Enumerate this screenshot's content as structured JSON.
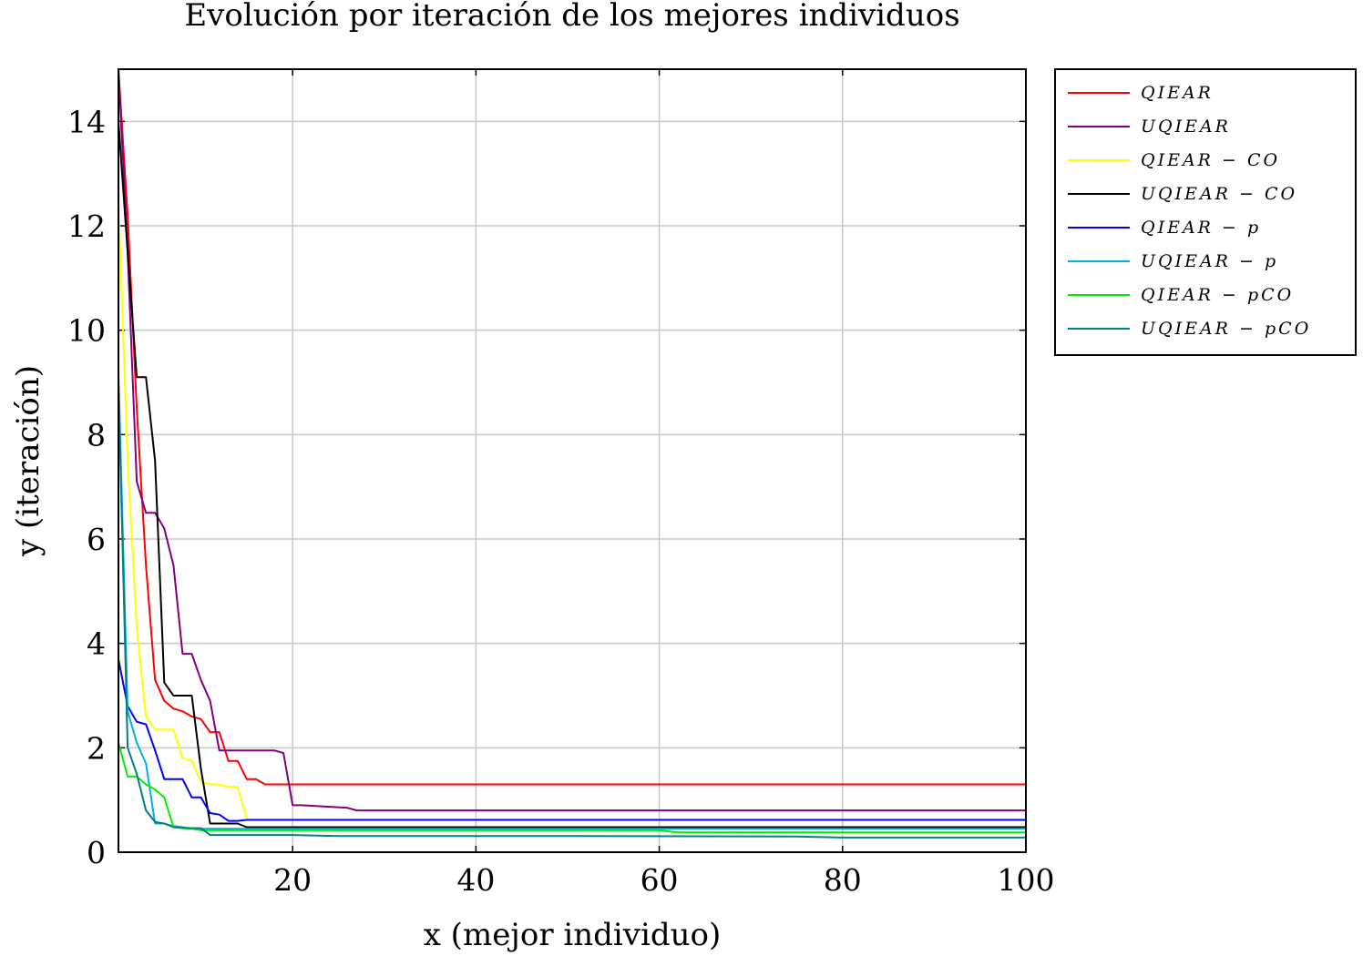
{
  "chart_data": {
    "type": "line",
    "title": "Evolución por iteración de los mejores individuos",
    "xlabel": "x (mejor individuo)",
    "ylabel": "y (iteración)",
    "xlim": [
      1,
      100
    ],
    "ylim": [
      0,
      15
    ],
    "xticks": [
      20,
      40,
      60,
      80,
      100
    ],
    "yticks": [
      0,
      2,
      4,
      6,
      8,
      10,
      12,
      14
    ],
    "grid": true,
    "legend_position": "outside-right-top",
    "series": [
      {
        "name": "QIEAR",
        "color": "#ff0000",
        "x": [
          1,
          2,
          3,
          4,
          5,
          6,
          7,
          8,
          9,
          10,
          11,
          12,
          13,
          14,
          15,
          16,
          17,
          100
        ],
        "y": [
          15,
          12.2,
          8.5,
          5.5,
          3.3,
          2.9,
          2.75,
          2.7,
          2.6,
          2.55,
          2.3,
          2.3,
          1.75,
          1.75,
          1.4,
          1.4,
          1.3,
          1.3
        ]
      },
      {
        "name": "UQIEAR",
        "color": "#800080",
        "x": [
          1,
          2,
          3,
          4,
          5,
          6,
          7,
          8,
          9,
          10,
          11,
          12,
          13,
          18,
          19,
          20,
          21,
          26,
          27,
          100
        ],
        "y": [
          15,
          11.5,
          7.1,
          6.5,
          6.5,
          6.2,
          5.5,
          3.8,
          3.8,
          3.3,
          2.9,
          1.95,
          1.95,
          1.95,
          1.9,
          0.9,
          0.9,
          0.85,
          0.8,
          0.8
        ]
      },
      {
        "name": "QIEAR − CO",
        "color": "#ffff00",
        "x": [
          1,
          2,
          3,
          4,
          5,
          6,
          7,
          8,
          9,
          10,
          11,
          12,
          13,
          14,
          15
        ],
        "y": [
          12.5,
          7.5,
          4.3,
          2.6,
          2.35,
          2.35,
          2.35,
          1.8,
          1.75,
          1.35,
          1.3,
          1.3,
          1.25,
          1.25,
          0.65
        ]
      },
      {
        "name": "UQIEAR − CO",
        "color": "#000000",
        "x": [
          1,
          2,
          3,
          4,
          5,
          6,
          7,
          8,
          9,
          10,
          11,
          12,
          13,
          14,
          15,
          16,
          100
        ],
        "y": [
          14,
          11.5,
          9.1,
          9.1,
          7.5,
          3.25,
          3.0,
          3.0,
          3.0,
          1.6,
          0.55,
          0.55,
          0.55,
          0.55,
          0.48,
          0.48,
          0.48
        ]
      },
      {
        "name": "QIEAR − p",
        "color": "#0000ff",
        "x": [
          1,
          2,
          3,
          4,
          5,
          6,
          7,
          8,
          9,
          10,
          11,
          12,
          13,
          14,
          15,
          100
        ],
        "y": [
          3.7,
          2.8,
          2.5,
          2.45,
          1.95,
          1.4,
          1.4,
          1.4,
          1.05,
          1.05,
          0.75,
          0.72,
          0.6,
          0.6,
          0.62,
          0.62
        ]
      },
      {
        "name": "UQIEAR − p",
        "color": "#00b0e0",
        "x": [
          1,
          2,
          3,
          4,
          5,
          6,
          7,
          8,
          9,
          10,
          11,
          100
        ],
        "y": [
          9.2,
          2.7,
          2.1,
          1.7,
          0.55,
          0.55,
          0.5,
          0.48,
          0.45,
          0.45,
          0.45,
          0.45
        ]
      },
      {
        "name": "QIEAR − pCO",
        "color": "#00ee00",
        "x": [
          1,
          2,
          3,
          4,
          5,
          6,
          7,
          8,
          9,
          10,
          30,
          60,
          62,
          100
        ],
        "y": [
          2.1,
          1.45,
          1.45,
          1.3,
          1.2,
          1.05,
          0.48,
          0.46,
          0.45,
          0.42,
          0.42,
          0.42,
          0.38,
          0.38
        ]
      },
      {
        "name": "UQIEAR − pCO",
        "color": "#008080",
        "x": [
          1,
          2,
          3,
          4,
          5,
          6,
          7,
          8,
          9,
          10,
          11,
          20,
          25,
          50,
          75,
          80,
          100
        ],
        "y": [
          9,
          2.0,
          1.5,
          0.8,
          0.58,
          0.55,
          0.48,
          0.47,
          0.46,
          0.46,
          0.33,
          0.33,
          0.31,
          0.31,
          0.3,
          0.28,
          0.28
        ]
      }
    ]
  }
}
